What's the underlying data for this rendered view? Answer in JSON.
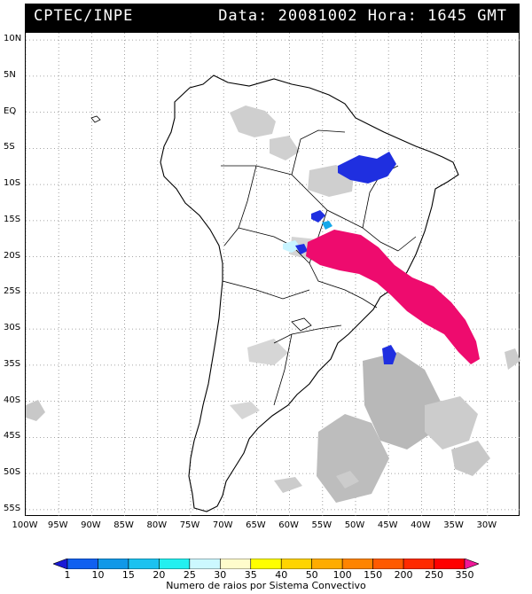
{
  "header": {
    "source": "CPTEC/INPE",
    "datetime": "Data: 20081002 Hora: 1645 GMT"
  },
  "map": {
    "lat_labels": [
      "10N",
      "5N",
      "EQ",
      "5S",
      "10S",
      "15S",
      "20S",
      "25S",
      "30S",
      "35S",
      "40S",
      "45S",
      "50S",
      "55S"
    ],
    "lon_labels": [
      "100W",
      "95W",
      "90W",
      "85W",
      "80W",
      "75W",
      "70W",
      "65W",
      "60W",
      "55W",
      "50W",
      "45W",
      "40W",
      "35W",
      "30W"
    ],
    "lat_range": [
      11,
      -56
    ],
    "lon_range": [
      -100,
      -25
    ],
    "gridlines": true,
    "colors": {
      "cloud": "#cfcfcf",
      "cloud_dark": "#a8a8a8",
      "storm_low": "#1f2fe0",
      "storm_mid": "#15a8ea",
      "storm_light": "#c8f4ff",
      "storm_high": "#ee0b6e"
    }
  },
  "legend": {
    "ticks": [
      "1",
      "10",
      "15",
      "20",
      "25",
      "30",
      "35",
      "40",
      "50",
      "100",
      "150",
      "200",
      "250",
      "350"
    ],
    "colors": [
      "#1a1ad6",
      "#1060f0",
      "#1198e8",
      "#1bc2f0",
      "#22f0f0",
      "#ccf8ff",
      "#fffccc",
      "#ffff00",
      "#ffd400",
      "#ffac00",
      "#ff8400",
      "#ff5a00",
      "#ff2a00",
      "#ff0000",
      "#f01898"
    ],
    "caption": "Numero de raios por Sistema Convectivo"
  }
}
